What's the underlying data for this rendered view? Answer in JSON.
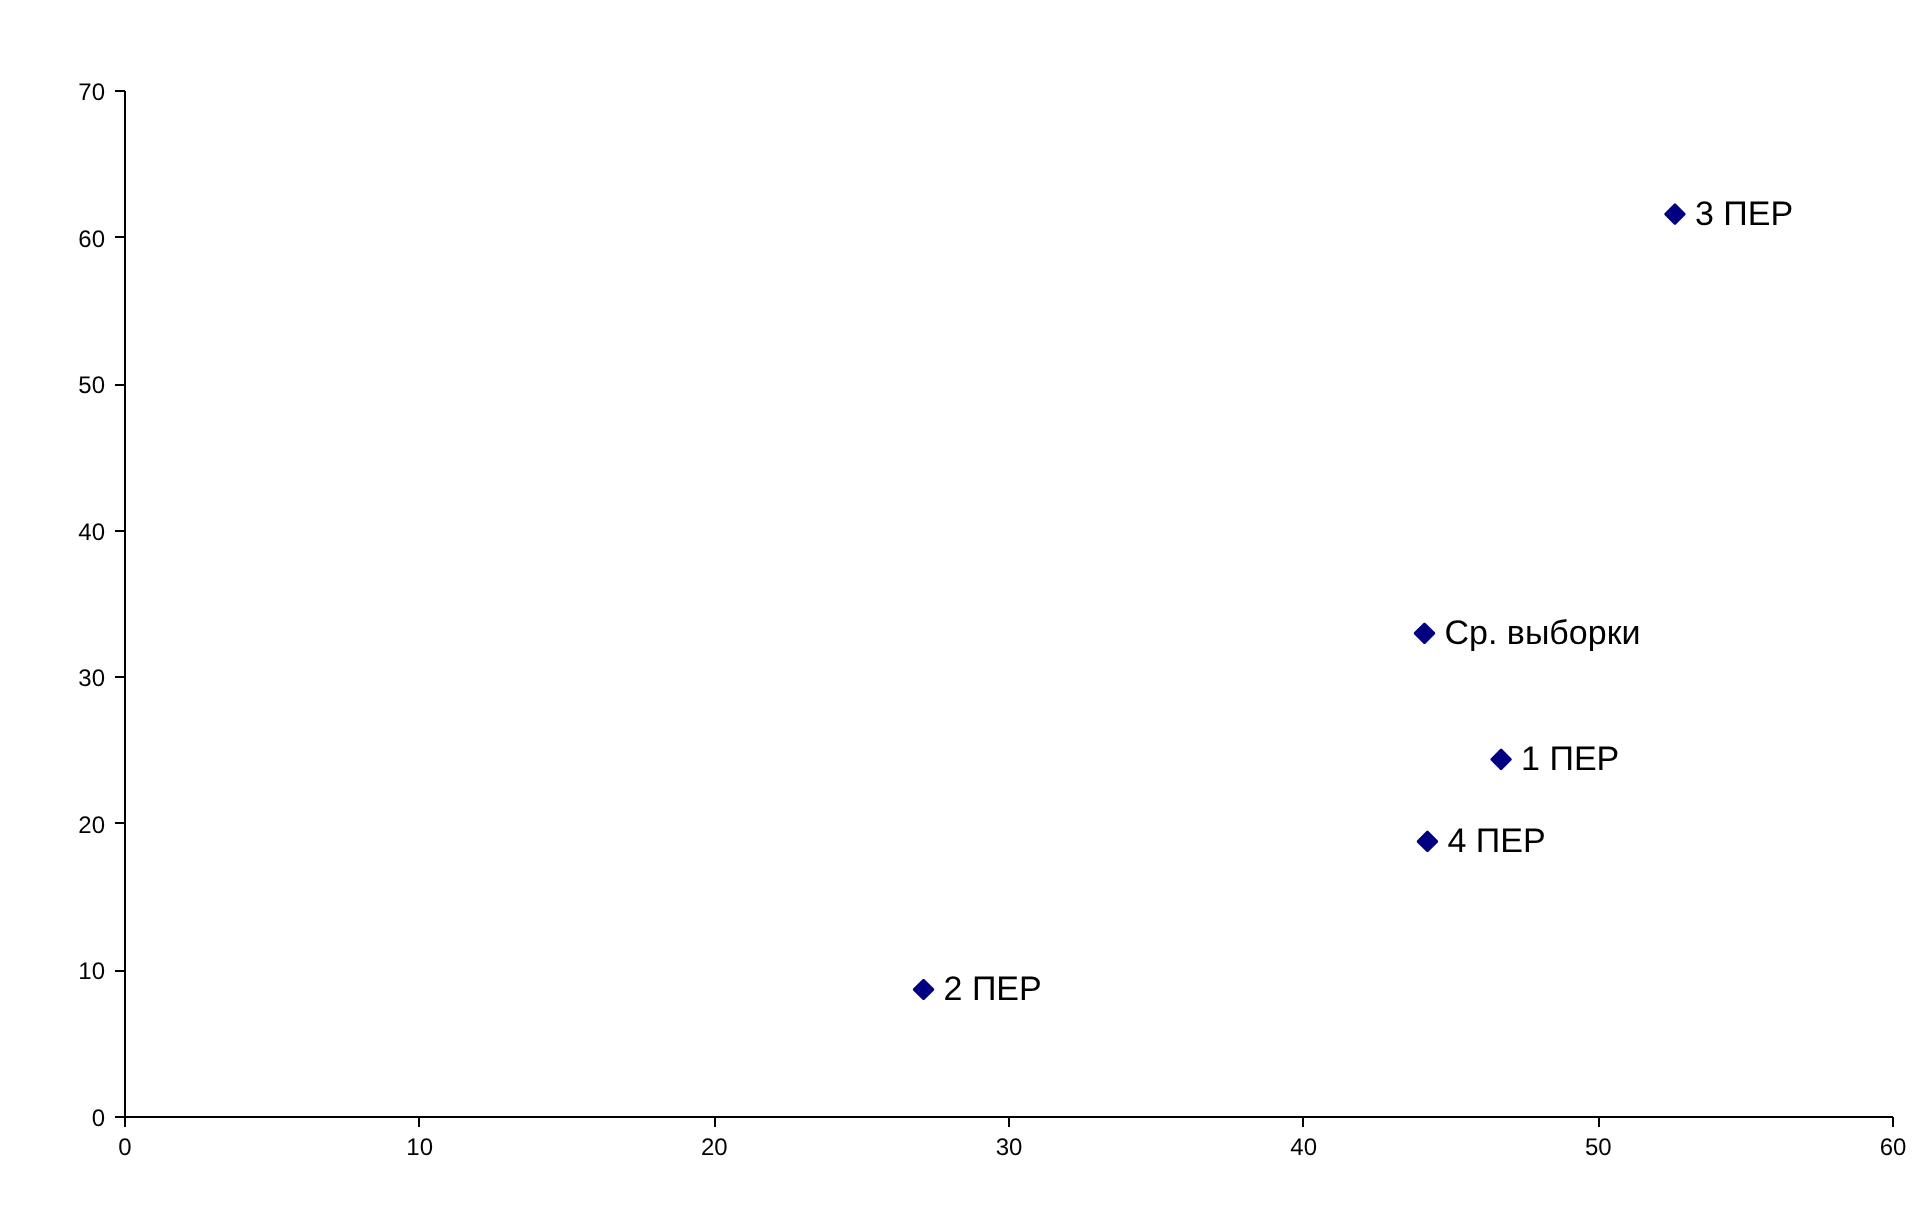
{
  "chart_data": {
    "type": "scatter",
    "marker": "diamond",
    "grid": false,
    "x": [
      46.7,
      27.1,
      52.6,
      44.2,
      44.1
    ],
    "series": [
      {
        "color": "#000080",
        "values": [
          24.4,
          8.7,
          61.6,
          18.8,
          33.0
        ]
      }
    ],
    "annotations": [
      {
        "text": "1 ПЕР",
        "x": 46.7,
        "y": 24.4
      },
      {
        "text": "2 ПЕР",
        "x": 27.1,
        "y": 8.7
      },
      {
        "text": "3 ПЕР",
        "x": 52.6,
        "y": 61.6
      },
      {
        "text": "4 ПЕР",
        "x": 44.2,
        "y": 18.8
      },
      {
        "text": "Ср. выборки",
        "x": 44.1,
        "y": 33.0
      }
    ],
    "xlim": [
      0,
      60
    ],
    "xticks": [
      0,
      10,
      20,
      30,
      40,
      50,
      60
    ],
    "ylim": [
      0,
      70
    ],
    "yticks": [
      0,
      10,
      20,
      30,
      40,
      50,
      60,
      70
    ]
  }
}
